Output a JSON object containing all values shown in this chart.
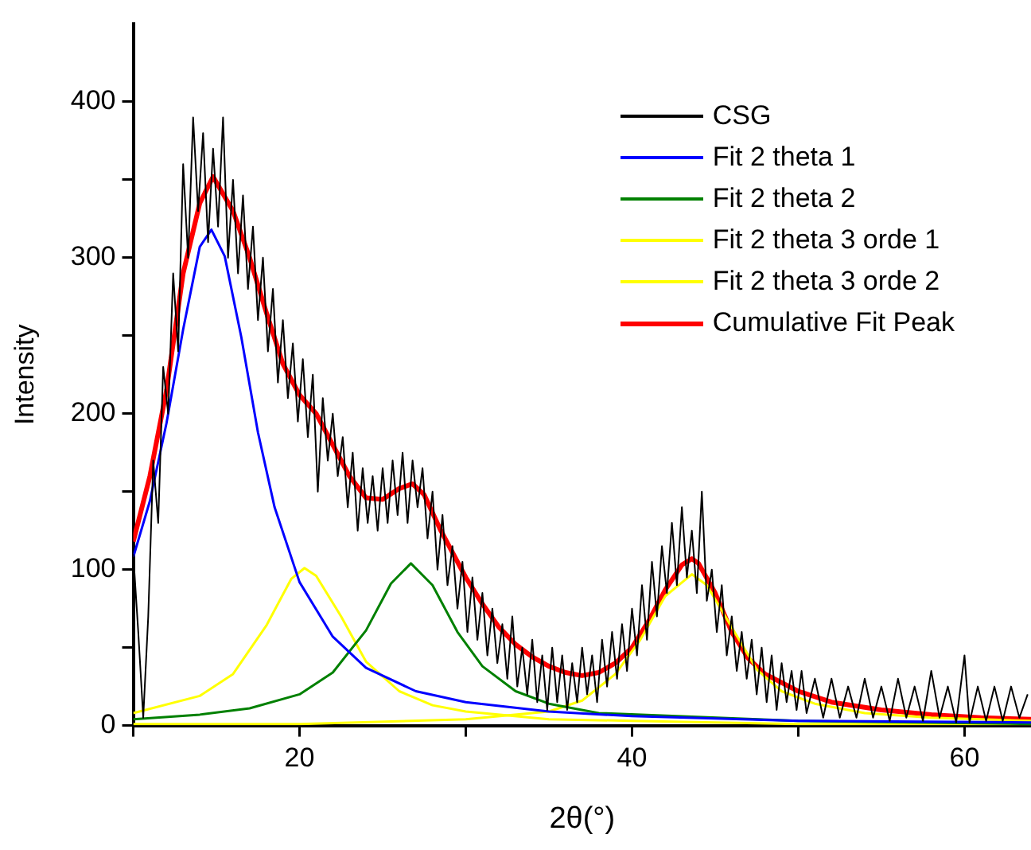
{
  "chart_data": {
    "type": "line",
    "xlabel": "2θ(°)",
    "ylabel": "Intensity",
    "xlim": [
      10,
      64
    ],
    "ylim": [
      0,
      450
    ],
    "xticks": [
      {
        "value": 10,
        "label": null
      },
      20,
      {
        "value": 30,
        "label": null
      },
      40,
      {
        "value": 50,
        "label": null
      },
      60
    ],
    "yticks": [
      0,
      {
        "value": 50,
        "label": null
      },
      100,
      {
        "value": 150,
        "label": null
      },
      200,
      {
        "value": 250,
        "label": null
      },
      300,
      {
        "value": 350,
        "label": null
      },
      400
    ],
    "grid": false,
    "legend": "top right",
    "marker": "none",
    "line_style": "solid",
    "series": [
      {
        "name": "CSG",
        "color": "#000000",
        "x": [
          10.0,
          10.3,
          10.6,
          10.9,
          11.2,
          11.5,
          11.8,
          12.1,
          12.4,
          12.7,
          13.0,
          13.3,
          13.6,
          13.9,
          14.2,
          14.5,
          14.8,
          15.1,
          15.4,
          15.7,
          16.0,
          16.3,
          16.6,
          16.9,
          17.2,
          17.5,
          17.8,
          18.1,
          18.4,
          18.7,
          19.0,
          19.3,
          19.6,
          19.9,
          20.2,
          20.5,
          20.8,
          21.1,
          21.4,
          21.7,
          22.0,
          22.3,
          22.6,
          22.9,
          23.2,
          23.5,
          23.8,
          24.1,
          24.4,
          24.7,
          25.0,
          25.3,
          25.6,
          25.9,
          26.2,
          26.5,
          26.8,
          27.1,
          27.4,
          27.7,
          28.0,
          28.3,
          28.6,
          28.9,
          29.2,
          29.5,
          29.8,
          30.1,
          30.4,
          30.7,
          31.0,
          31.3,
          31.6,
          31.9,
          32.2,
          32.5,
          32.8,
          33.1,
          33.4,
          33.7,
          34.0,
          34.3,
          34.6,
          34.9,
          35.2,
          35.5,
          35.8,
          36.1,
          36.4,
          36.7,
          37.0,
          37.3,
          37.6,
          37.9,
          38.2,
          38.5,
          38.8,
          39.1,
          39.4,
          39.7,
          40.0,
          40.3,
          40.6,
          40.9,
          41.2,
          41.5,
          41.8,
          42.1,
          42.4,
          42.7,
          43.0,
          43.3,
          43.6,
          43.9,
          44.2,
          44.5,
          44.8,
          45.1,
          45.4,
          45.7,
          46.0,
          46.3,
          46.6,
          46.9,
          47.2,
          47.5,
          47.8,
          48.1,
          48.4,
          48.7,
          49.0,
          49.3,
          49.6,
          49.9,
          50.2,
          50.5,
          51.0,
          51.5,
          52.0,
          52.5,
          53.0,
          53.5,
          54.0,
          54.5,
          55.0,
          55.5,
          56.0,
          56.5,
          57.0,
          57.5,
          58.0,
          58.5,
          59.0,
          59.5,
          60.0,
          60.3,
          60.8,
          61.3,
          61.8,
          62.3,
          62.8,
          63.3,
          63.8
        ],
        "values": [
          110,
          60,
          5,
          70,
          170,
          130,
          230,
          200,
          290,
          240,
          360,
          300,
          390,
          330,
          380,
          310,
          370,
          320,
          390,
          300,
          350,
          290,
          340,
          280,
          320,
          260,
          300,
          240,
          280,
          220,
          260,
          210,
          245,
          195,
          235,
          185,
          225,
          150,
          210,
          170,
          200,
          160,
          185,
          140,
          175,
          125,
          165,
          130,
          160,
          125,
          165,
          130,
          170,
          135,
          175,
          130,
          170,
          140,
          165,
          120,
          150,
          100,
          135,
          90,
          115,
          75,
          105,
          60,
          95,
          55,
          85,
          45,
          75,
          40,
          65,
          30,
          70,
          25,
          50,
          20,
          55,
          15,
          45,
          10,
          50,
          15,
          45,
          10,
          40,
          15,
          50,
          20,
          45,
          15,
          55,
          25,
          60,
          30,
          65,
          35,
          75,
          45,
          90,
          55,
          105,
          70,
          115,
          85,
          130,
          90,
          140,
          95,
          125,
          85,
          150,
          80,
          100,
          60,
          90,
          45,
          70,
          35,
          60,
          30,
          55,
          20,
          50,
          15,
          45,
          10,
          40,
          15,
          35,
          10,
          35,
          8,
          30,
          5,
          30,
          5,
          25,
          5,
          30,
          5,
          25,
          3,
          30,
          5,
          25,
          3,
          35,
          5,
          25,
          2,
          45,
          2,
          25,
          3,
          25,
          3,
          25,
          5,
          20
        ]
      },
      {
        "name": "Fit 2 theta 1",
        "color": "#0000ff",
        "x": [
          10,
          11,
          12,
          13,
          14,
          14.7,
          15.5,
          16.5,
          17.5,
          18.5,
          20,
          22,
          24,
          27,
          30,
          35,
          40,
          50,
          64
        ],
        "values": [
          108,
          144,
          194,
          254,
          307,
          318,
          301,
          249,
          188,
          140,
          92,
          57,
          37,
          22,
          15,
          9,
          6,
          3,
          2
        ]
      },
      {
        "name": "Fit 2 theta 2",
        "color": "#008000",
        "x": [
          10,
          14,
          17,
          20,
          22,
          24,
          25.5,
          26.7,
          28,
          29.5,
          31,
          33,
          35,
          38,
          50,
          64
        ],
        "values": [
          4,
          7,
          11,
          20,
          34,
          61,
          91,
          104,
          90,
          60,
          38,
          22,
          14,
          8,
          3,
          1
        ]
      },
      {
        "name": "Fit 2 theta 3 orde 1",
        "color": "#ffff00",
        "x": [
          10,
          14,
          16,
          18,
          19.5,
          20.3,
          21,
          22.5,
          24,
          26,
          28,
          30,
          35,
          40,
          50,
          64
        ],
        "values": [
          8,
          19,
          33,
          64,
          94,
          101,
          96,
          70,
          41,
          22,
          13,
          9,
          4,
          3,
          1,
          1
        ]
      },
      {
        "name": "Fit 2 theta 3 orde 2",
        "color": "#ffff00",
        "x": [
          10,
          20,
          30,
          35,
          37,
          39,
          40.5,
          42,
          43.6,
          44.5,
          46,
          47.5,
          49,
          51,
          54,
          58,
          64
        ],
        "values": [
          1,
          1,
          4,
          9,
          16,
          33,
          55,
          83,
          97,
          90,
          63,
          36,
          22,
          14,
          8,
          5,
          3
        ]
      },
      {
        "name": "Cumulative Fit Peak",
        "color": "#ff0000",
        "x": [
          10,
          11,
          12,
          13,
          14,
          14.8,
          16,
          17,
          18,
          19,
          20,
          21,
          22,
          23,
          24,
          25,
          26,
          26.8,
          27.5,
          28.5,
          30,
          31,
          32,
          33,
          34,
          35,
          36,
          37,
          38,
          39,
          40,
          41,
          42,
          43,
          43.6,
          44,
          45,
          46,
          47,
          48,
          50,
          52,
          55,
          58,
          61,
          64
        ],
        "values": [
          118,
          160,
          215,
          290,
          335,
          352,
          330,
          300,
          265,
          232,
          212,
          200,
          180,
          160,
          146,
          145,
          152,
          155,
          148,
          125,
          95,
          78,
          63,
          52,
          44,
          38,
          34,
          32,
          34,
          40,
          50,
          67,
          87,
          103,
          107,
          104,
          85,
          60,
          43,
          33,
          22,
          15,
          10,
          7,
          5,
          4
        ]
      }
    ]
  }
}
